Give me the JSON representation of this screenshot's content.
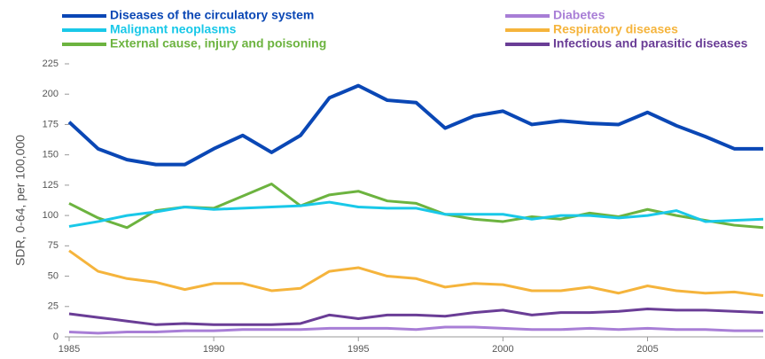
{
  "chart_data": {
    "type": "line",
    "y_label": "SDR, 0-64, per 100,000",
    "x": [
      1985,
      1986,
      1987,
      1988,
      1989,
      1990,
      1991,
      1992,
      1993,
      1994,
      1995,
      1996,
      1997,
      1998,
      1999,
      2000,
      2001,
      2002,
      2003,
      2004,
      2005,
      2006,
      2007,
      2008,
      2009
    ],
    "series": [
      {
        "name": "Diseases of the circulatory system",
        "color": "#0a47b5",
        "values": [
          177,
          155,
          146,
          142,
          142,
          155,
          166,
          152,
          166,
          197,
          207,
          195,
          193,
          172,
          182,
          186,
          175,
          178,
          176,
          175,
          185,
          174,
          165,
          155,
          155
        ]
      },
      {
        "name": "Malignant neoplasms",
        "color": "#19c8e8",
        "values": [
          91,
          95,
          100,
          103,
          107,
          105,
          106,
          107,
          108,
          111,
          107,
          106,
          106,
          101,
          101,
          101,
          97,
          100,
          100,
          98,
          100,
          104,
          95,
          96,
          97
        ]
      },
      {
        "name": "External cause, injury and poisoning",
        "color": "#6cb33f",
        "values": [
          110,
          98,
          90,
          104,
          107,
          106,
          116,
          126,
          108,
          117,
          120,
          112,
          110,
          101,
          97,
          95,
          99,
          97,
          102,
          99,
          105,
          100,
          96,
          92,
          90
        ]
      },
      {
        "name": "Diabetes",
        "color": "#a87ed6",
        "values": [
          4,
          3,
          4,
          4,
          5,
          5,
          6,
          6,
          6,
          7,
          7,
          7,
          6,
          8,
          8,
          7,
          6,
          6,
          7,
          6,
          7,
          6,
          6,
          5,
          5
        ]
      },
      {
        "name": "Respiratory diseases",
        "color": "#f5b43c",
        "values": [
          71,
          54,
          48,
          45,
          39,
          44,
          44,
          38,
          40,
          54,
          57,
          50,
          48,
          41,
          44,
          43,
          38,
          38,
          41,
          36,
          42,
          38,
          36,
          37,
          34
        ]
      },
      {
        "name": "Infectious and parasitic diseases",
        "color": "#6a3d96",
        "values": [
          19,
          16,
          13,
          10,
          11,
          10,
          10,
          10,
          11,
          18,
          15,
          18,
          18,
          17,
          20,
          22,
          18,
          20,
          20,
          21,
          23,
          22,
          22,
          21,
          20
        ]
      }
    ],
    "xlim": [
      1985,
      2009
    ],
    "xticks": [
      1985,
      1990,
      1995,
      2000,
      2005
    ],
    "ylim": [
      0,
      225
    ],
    "yticks": [
      0,
      25,
      50,
      75,
      100,
      125,
      150,
      175,
      200,
      225
    ]
  }
}
